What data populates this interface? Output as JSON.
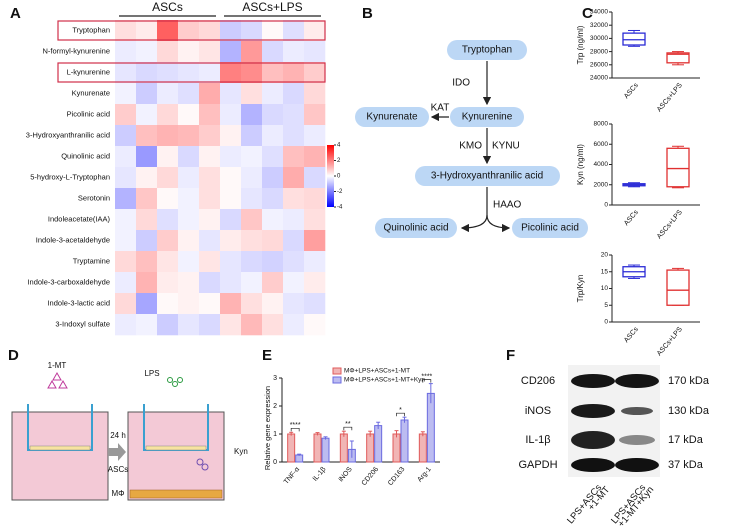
{
  "panel_labels": [
    "A",
    "B",
    "C",
    "D",
    "E",
    "F"
  ],
  "chart_data": [
    {
      "type": "heatmap",
      "groups": [
        "ASCs",
        "ASCs+LPS"
      ],
      "rows": [
        "Tryptophan",
        "N-formyl-kynurenine",
        "L-kynurenine",
        "Kynurenate",
        "Picolinic acid",
        "3-Hydroxyanthranilic acid",
        "Quinolinic acid",
        "5-hydroxy-L-Tryptophan",
        "Serotonin",
        "Indoleacetate(IAA)",
        "Indole-3-acetaldehyde",
        "Tryptamine",
        "Indole-3-carboxaldehyde",
        "Indole-3-lactic acid",
        "3-Indoxyl sulfate"
      ],
      "values": [
        [
          0.5,
          0.3,
          2.5,
          0.8,
          0.6,
          -0.8,
          -0.6,
          0.1,
          -0.5,
          0.3
        ],
        [
          -0.3,
          -0.2,
          0.6,
          0.2,
          0.4,
          -1.2,
          1.6,
          -0.6,
          -0.3,
          -0.4
        ],
        [
          -0.4,
          -0.6,
          -0.5,
          -0.4,
          -0.3,
          2.0,
          1.8,
          1.0,
          1.2,
          0.8
        ],
        [
          -0.2,
          -0.8,
          -0.3,
          -0.5,
          1.3,
          -0.4,
          0.5,
          -0.3,
          -0.6,
          0.6
        ],
        [
          0.8,
          -0.2,
          0.6,
          0.1,
          1.0,
          -0.3,
          -1.2,
          -0.6,
          -0.5,
          0.9
        ],
        [
          -0.8,
          1.0,
          1.2,
          1.1,
          0.8,
          0.2,
          -0.8,
          -0.3,
          -0.5,
          -0.3
        ],
        [
          -0.3,
          -1.6,
          0.2,
          -0.6,
          0.2,
          -0.3,
          -0.2,
          -0.5,
          1.0,
          1.2
        ],
        [
          -0.4,
          0.2,
          0.6,
          -0.3,
          0.5,
          0.1,
          -0.3,
          -0.8,
          1.3,
          -0.6
        ],
        [
          -1.2,
          0.9,
          0.1,
          -0.2,
          0.5,
          0.1,
          -0.4,
          -0.6,
          0.5,
          0.6
        ],
        [
          -0.2,
          0.6,
          -0.5,
          -0.2,
          0.2,
          -0.6,
          0.9,
          -0.2,
          -0.3,
          0.5
        ],
        [
          -0.2,
          -0.8,
          0.8,
          0.2,
          -0.4,
          0.3,
          0.5,
          0.6,
          -0.6,
          1.5
        ],
        [
          0.6,
          1.0,
          0.4,
          -0.2,
          0.4,
          -0.4,
          -0.6,
          -0.7,
          -0.5,
          -0.3
        ],
        [
          -0.3,
          1.2,
          0.3,
          0.2,
          -0.6,
          -0.4,
          -0.2,
          0.8,
          -0.2,
          0.3
        ],
        [
          0.6,
          -1.4,
          0.1,
          0.2,
          0.1,
          1.2,
          0.5,
          0.2,
          -0.4,
          -0.5
        ],
        [
          -0.3,
          -0.2,
          -0.8,
          -0.4,
          -0.6,
          0.4,
          1.1,
          0.5,
          -0.3,
          0.1
        ]
      ],
      "clim": [
        -4,
        4
      ],
      "cticks": [
        4,
        2,
        0,
        -2,
        -4
      ]
    },
    {
      "type": "box",
      "ylabel": "Trp (ng/ml)",
      "categories": [
        "ASCs",
        "ASCs+LPS"
      ],
      "colors": [
        "#2b2bd6",
        "#e03030"
      ],
      "boxes": [
        {
          "min": 28800,
          "q1": 29000,
          "median": 29800,
          "q3": 30800,
          "max": 31200
        },
        {
          "min": 26000,
          "q1": 26300,
          "median": 27600,
          "q3": 27800,
          "max": 28000
        }
      ],
      "ylim": [
        24000,
        34000
      ],
      "yticks": [
        24000,
        26000,
        28000,
        30000,
        32000,
        34000
      ]
    },
    {
      "type": "box",
      "ylabel": "Kyn (ng/ml)",
      "categories": [
        "ASCs",
        "ASCs+LPS"
      ],
      "colors": [
        "#2b2bd6",
        "#e03030"
      ],
      "boxes": [
        {
          "min": 1800,
          "q1": 1900,
          "median": 2000,
          "q3": 2100,
          "max": 2200
        },
        {
          "min": 1700,
          "q1": 1800,
          "median": 3600,
          "q3": 5600,
          "max": 5800
        }
      ],
      "ylim": [
        0,
        8000
      ],
      "yticks": [
        0,
        2000,
        4000,
        6000,
        8000
      ]
    },
    {
      "type": "box",
      "ylabel": "Trp/Kyn",
      "categories": [
        "ASCs",
        "ASCs+LPS"
      ],
      "colors": [
        "#2b2bd6",
        "#e03030"
      ],
      "boxes": [
        {
          "min": 13,
          "q1": 13.5,
          "median": 15,
          "q3": 16.5,
          "max": 17
        },
        {
          "min": 5,
          "q1": 5,
          "median": 9.5,
          "q3": 15.5,
          "max": 16
        }
      ],
      "ylim": [
        0,
        20
      ],
      "yticks": [
        0,
        5,
        10,
        15,
        20
      ]
    },
    {
      "type": "bar",
      "ylabel": "Relative gene expression",
      "categories": [
        "TNF-α",
        "IL-1β",
        "iNOS",
        "CD206",
        "CD163",
        "Arg-1"
      ],
      "series": [
        {
          "name": "MΦ+LPS+ASCs+1-MT",
          "color": "#e05a5a",
          "values": [
            1,
            1,
            1,
            1,
            1,
            1
          ],
          "errors": [
            0.06,
            0.05,
            0.1,
            0.1,
            0.12,
            0.08
          ]
        },
        {
          "name": "MΦ+LPS+ASCs+1-MT+Kyn",
          "color": "#6b6be0",
          "values": [
            0.25,
            0.85,
            0.45,
            1.3,
            1.5,
            2.45
          ],
          "errors": [
            0.03,
            0.05,
            0.3,
            0.12,
            0.1,
            0.35
          ]
        }
      ],
      "significance": [
        "****",
        null,
        "**",
        null,
        "*",
        "****"
      ],
      "ylim": [
        0,
        3
      ],
      "yticks": [
        0,
        1,
        2,
        3
      ]
    }
  ],
  "pathway": {
    "nodes": [
      "Tryptophan",
      "Kynurenine",
      "Kynurenate",
      "3-Hydroxyanthranilic acid",
      "Quinolinic acid",
      "Picolinic acid"
    ],
    "enzymes": [
      "IDO",
      "KAT",
      "KMO",
      "KYNU",
      "HAAO"
    ]
  },
  "schematic": {
    "labels": [
      "1-MT",
      "24 h",
      "LPS",
      "ASCs",
      "Kyn",
      "MΦ"
    ]
  },
  "blot": {
    "proteins": [
      "CD206",
      "iNOS",
      "IL-1β",
      "GAPDH"
    ],
    "sizes": [
      "170 kDa",
      "130 kDa",
      "17 kDa",
      "37 kDa"
    ],
    "lanes": [
      [
        "LPS+ASCs",
        "+1-MT"
      ],
      [
        "LPS+ASCs",
        "+1-MT+Kyn"
      ]
    ]
  }
}
